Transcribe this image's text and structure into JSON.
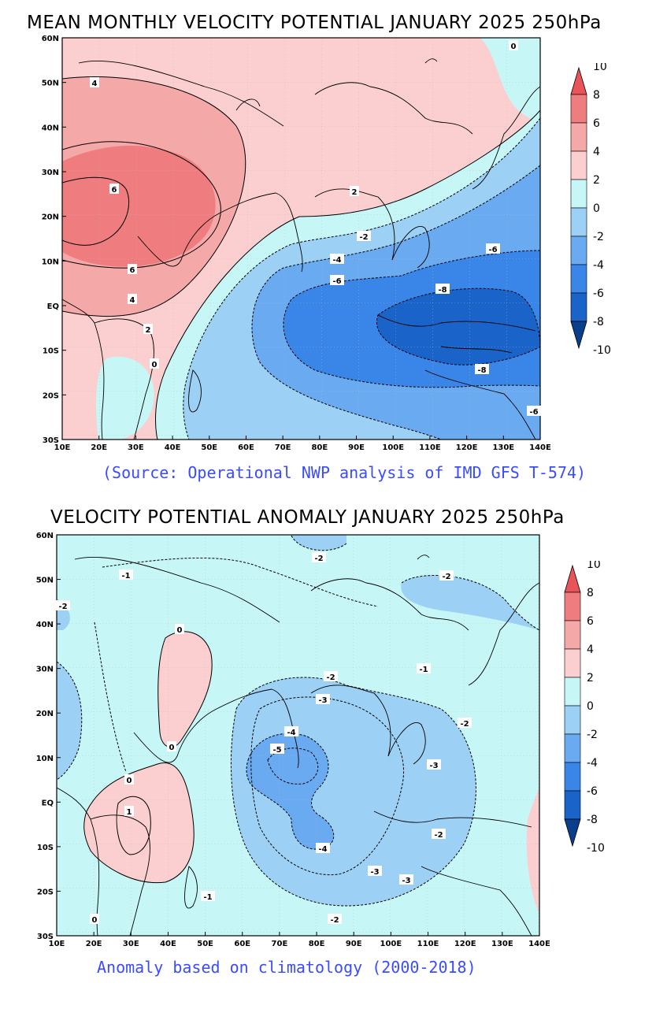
{
  "panels": [
    {
      "id": "mean",
      "title": "MEAN MONTHLY VELOCITY POTENTIAL JANUARY 2025 250hPa",
      "footnote": "(Source: Operational NWP analysis of IMD GFS T-574)",
      "lat_labels": [
        "60N",
        "50N",
        "40N",
        "30N",
        "20N",
        "10N",
        "EQ",
        "10S",
        "20S",
        "30S"
      ],
      "lon_labels": [
        "10E",
        "20E",
        "30E",
        "40E",
        "50E",
        "60E",
        "70E",
        "80E",
        "90E",
        "100E",
        "110E",
        "120E",
        "130E",
        "140E"
      ],
      "contour_labels": [
        "4",
        "6",
        "6",
        "4",
        "2",
        "0",
        "2",
        "-2",
        "-4",
        "-6",
        "-8",
        "-8",
        "-6",
        "-6",
        "0"
      ]
    },
    {
      "id": "anomaly",
      "title": "VELOCITY POTENTIAL ANOMALY JANUARY 2025 250hPa",
      "footnote": "Anomaly based on climatology (2000-2018)",
      "lat_labels": [
        "60N",
        "50N",
        "40N",
        "30N",
        "20N",
        "10N",
        "EQ",
        "10S",
        "20S",
        "30S"
      ],
      "lon_labels": [
        "10E",
        "20E",
        "30E",
        "40E",
        "50E",
        "60E",
        "70E",
        "80E",
        "90E",
        "100E",
        "110E",
        "120E",
        "130E",
        "140E"
      ],
      "contour_labels": [
        "-1",
        "-2",
        "-2",
        "0",
        "-2",
        "-1",
        "-3",
        "-4",
        "-5",
        "-3",
        "-2",
        "0",
        "0",
        "1",
        "-4",
        "-3",
        "-3",
        "-1",
        "-2",
        "0",
        "-2",
        "-2"
      ]
    }
  ],
  "colorbar": {
    "labels": [
      "10",
      "8",
      "6",
      "4",
      "2",
      "0",
      "-2",
      "-4",
      "-6",
      "-8",
      "-10"
    ],
    "colors": [
      "#e8545a",
      "#ef7d7f",
      "#f5a8a8",
      "#fbcfcf",
      "#c7f6f6",
      "#9cd0f4",
      "#6aaaf0",
      "#3a85e8",
      "#1a63c8",
      "#0a3f8c"
    ]
  }
}
